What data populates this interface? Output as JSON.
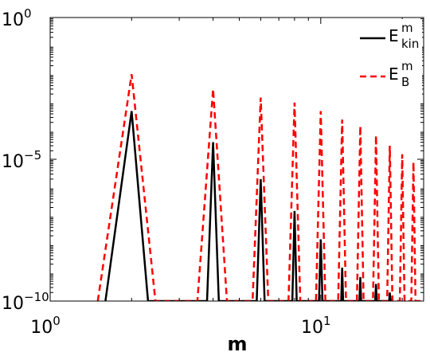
{
  "chart_data": {
    "type": "line",
    "xlabel": "m",
    "ylabel": "",
    "title": "",
    "xscale": "log",
    "yscale": "log",
    "xlim": [
      1,
      24
    ],
    "ylim": [
      1e-10,
      1
    ],
    "x_ticks": [
      {
        "value": 1,
        "base": "10",
        "exp": "0"
      },
      {
        "value": 10,
        "base": "10",
        "exp": "1"
      }
    ],
    "y_ticks": [
      {
        "value": 1,
        "base": "10",
        "exp": "0"
      },
      {
        "value": 1e-05,
        "base": "10",
        "exp": "−5"
      },
      {
        "value": 1e-10,
        "base": "10",
        "exp": "−10"
      }
    ],
    "grid": false,
    "legend_position": "top-right",
    "series": [
      {
        "name": "E_kin^m",
        "legend_main": "E",
        "legend_sub": "kin",
        "legend_sup": "m",
        "color": "#000000",
        "dash": "solid",
        "x": [
          1.6,
          2,
          2.3,
          3.8,
          4,
          4.2,
          5.8,
          6,
          6.2,
          7.85,
          8,
          8.15,
          9.85,
          10,
          10.15,
          11.9,
          12,
          12.1,
          13.9,
          14,
          14.1,
          15.9,
          16,
          16.1,
          17.9,
          18,
          18.1
        ],
        "y": [
          1e-10,
          0.0005,
          1e-10,
          1e-10,
          4e-05,
          1e-10,
          1e-10,
          2e-06,
          1e-10,
          1e-10,
          1.5e-07,
          1e-10,
          1e-10,
          1.5e-08,
          1e-10,
          1e-10,
          1.5e-09,
          1e-10,
          1e-10,
          7e-10,
          1e-10,
          1e-10,
          4e-10,
          1e-10,
          1e-10,
          2e-10,
          1e-10
        ]
      },
      {
        "name": "E_B^m",
        "legend_main": "E",
        "legend_sub": "B",
        "legend_sup": "m",
        "color": "#ff0000",
        "dash": "dashed",
        "x": [
          1.5,
          2,
          2.45,
          3.5,
          4,
          4.5,
          5.6,
          6,
          6.4,
          7.6,
          8,
          8.4,
          9.6,
          10,
          10.4,
          11.6,
          12,
          12.4,
          13.6,
          14,
          14.4,
          15.6,
          16,
          16.4,
          17.6,
          18,
          18.4,
          19.6,
          20,
          20.4,
          21.6,
          22,
          22.4,
          23.6
        ],
        "y": [
          1e-10,
          0.01,
          1e-10,
          1e-10,
          0.003,
          1e-10,
          1e-10,
          0.0015,
          1e-10,
          1e-10,
          0.001,
          1e-10,
          1e-10,
          0.0005,
          1e-10,
          1e-10,
          0.00025,
          1e-10,
          1e-10,
          0.00015,
          1e-10,
          1e-10,
          7e-05,
          1e-10,
          1e-10,
          3e-05,
          1e-10,
          1e-10,
          1.5e-05,
          1e-10,
          1e-10,
          8e-06,
          1e-10,
          1e-10
        ]
      }
    ]
  }
}
